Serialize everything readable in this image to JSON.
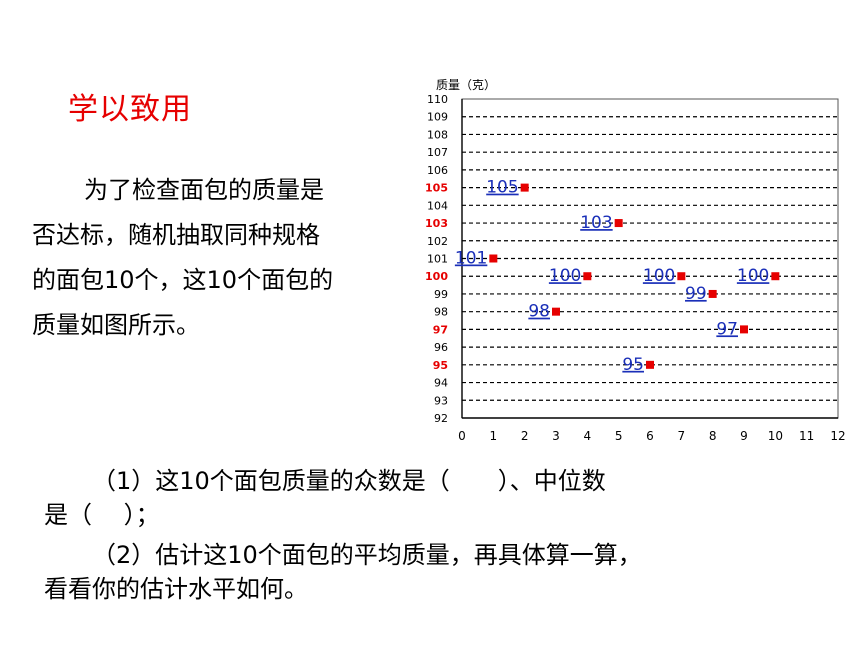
{
  "heading": "学以致用",
  "intro": {
    "line1": "为了检查面包的质量是",
    "line2": "否达标，随机抽取同种规格",
    "line3": "的面包10个，这10个面包的",
    "line4": "质量如图所示。"
  },
  "question1": {
    "line1": "（1）这10个面包质量的众数是（　　）、中位数",
    "line2": "是（　 ）；"
  },
  "question2": {
    "line1": "（2）估计这10个面包的平均质量，再具体算一算，",
    "line2": "看看你的估计水平如何。"
  },
  "chart_data": {
    "type": "scatter",
    "ylabel": "质量（克）",
    "xlabel": "",
    "xlim": [
      0,
      12
    ],
    "ylim": [
      92,
      110
    ],
    "x_ticks": [
      0,
      1,
      2,
      3,
      4,
      5,
      6,
      7,
      8,
      9,
      10,
      11,
      12
    ],
    "y_ticks": [
      92,
      93,
      94,
      95,
      96,
      97,
      98,
      99,
      100,
      101,
      102,
      103,
      104,
      105,
      106,
      107,
      108,
      109,
      110
    ],
    "highlighted_y_ticks": [
      95,
      97,
      100,
      103,
      105
    ],
    "grid": "horizontal-dashed",
    "points": [
      {
        "x": 1,
        "y": 101,
        "label": "101"
      },
      {
        "x": 2,
        "y": 105,
        "label": "105"
      },
      {
        "x": 3,
        "y": 98,
        "label": "98"
      },
      {
        "x": 4,
        "y": 100,
        "label": "100"
      },
      {
        "x": 5,
        "y": 103,
        "label": "103"
      },
      {
        "x": 6,
        "y": 95,
        "label": "95"
      },
      {
        "x": 7,
        "y": 100,
        "label": "100"
      },
      {
        "x": 8,
        "y": 99,
        "label": "99"
      },
      {
        "x": 9,
        "y": 97,
        "label": "97"
      },
      {
        "x": 10,
        "y": 100,
        "label": "100"
      }
    ],
    "colors": {
      "point": "#e60000",
      "label": "#1a2fb8",
      "highlight_tick": "#e60000",
      "tick": "#000000"
    }
  }
}
